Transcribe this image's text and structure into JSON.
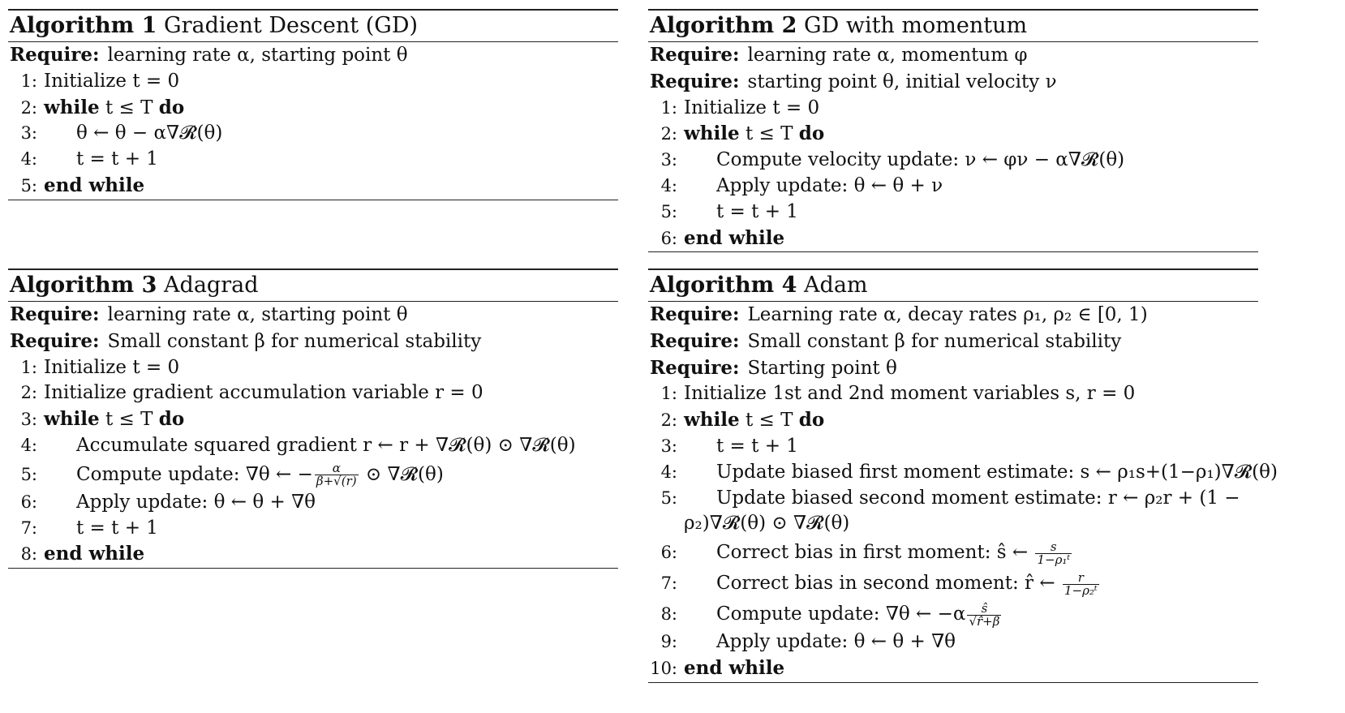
{
  "algorithms": [
    {
      "title_num": "Algorithm 1",
      "title_name": "Gradient Descent (GD)",
      "requires": [
        "learning rate α, starting point θ"
      ],
      "steps": [
        {
          "n": "1:",
          "indent": 0,
          "kw": "",
          "text": "Initialize t = 0",
          "kw2": ""
        },
        {
          "n": "2:",
          "indent": 0,
          "kw": "while",
          "text": " t ≤ T ",
          "kw2": "do"
        },
        {
          "n": "3:",
          "indent": 1,
          "kw": "",
          "text": "θ ← θ − α∇𝓡(θ)",
          "kw2": ""
        },
        {
          "n": "4:",
          "indent": 1,
          "kw": "",
          "text": "t = t + 1",
          "kw2": ""
        },
        {
          "n": "5:",
          "indent": 0,
          "kw": "end while",
          "text": "",
          "kw2": ""
        }
      ]
    },
    {
      "title_num": "Algorithm 2",
      "title_name": "GD with momentum",
      "requires": [
        "learning rate α, momentum φ",
        "starting point θ, initial velocity ν"
      ],
      "steps": [
        {
          "n": "1:",
          "indent": 0,
          "kw": "",
          "text": "Initialize t = 0",
          "kw2": ""
        },
        {
          "n": "2:",
          "indent": 0,
          "kw": "while",
          "text": " t ≤ T ",
          "kw2": "do"
        },
        {
          "n": "3:",
          "indent": 1,
          "kw": "",
          "text": "Compute velocity update: ν ← φν − α∇𝓡(θ)",
          "kw2": ""
        },
        {
          "n": "4:",
          "indent": 1,
          "kw": "",
          "text": "Apply update: θ ← θ + ν",
          "kw2": ""
        },
        {
          "n": "5:",
          "indent": 1,
          "kw": "",
          "text": "t = t + 1",
          "kw2": ""
        },
        {
          "n": "6:",
          "indent": 0,
          "kw": "end while",
          "text": "",
          "kw2": ""
        }
      ]
    },
    {
      "title_num": "Algorithm 3",
      "title_name": "Adagrad",
      "requires": [
        "learning rate α, starting point θ",
        "Small constant β for numerical stability"
      ],
      "steps": [
        {
          "n": "1:",
          "indent": 0,
          "kw": "",
          "text": "Initialize t = 0",
          "kw2": ""
        },
        {
          "n": "2:",
          "indent": 0,
          "kw": "",
          "text": "Initialize gradient accumulation variable r = 0",
          "kw2": ""
        },
        {
          "n": "3:",
          "indent": 0,
          "kw": "while",
          "text": " t ≤ T ",
          "kw2": "do"
        },
        {
          "n": "4:",
          "indent": 1,
          "kw": "",
          "text": "Accumulate squared gradient r ← r + ∇𝓡(θ) ⊙ ∇𝓡(θ)",
          "kw2": ""
        },
        {
          "n": "5:",
          "indent": 1,
          "kw": "",
          "text": "Compute update: ∇θ ← −",
          "frac_n": "α",
          "frac_d": "β+√(r)",
          "after": " ⊙ ∇𝓡(θ)",
          "kw2": ""
        },
        {
          "n": "6:",
          "indent": 1,
          "kw": "",
          "text": "Apply update: θ ← θ + ∇θ",
          "kw2": ""
        },
        {
          "n": "7:",
          "indent": 1,
          "kw": "",
          "text": "t = t + 1",
          "kw2": ""
        },
        {
          "n": "8:",
          "indent": 0,
          "kw": "end while",
          "text": "",
          "kw2": ""
        }
      ]
    },
    {
      "title_num": "Algorithm 4",
      "title_name": "Adam",
      "requires": [
        "Learning rate α, decay rates ρ₁, ρ₂ ∈ [0, 1)",
        "Small constant β for numerical stability",
        "Starting point θ"
      ],
      "steps": [
        {
          "n": "1:",
          "indent": 0,
          "kw": "",
          "text": "Initialize 1st and 2nd moment variables s, r = 0",
          "kw2": ""
        },
        {
          "n": "2:",
          "indent": 0,
          "kw": "while",
          "text": " t ≤ T ",
          "kw2": "do"
        },
        {
          "n": "3:",
          "indent": 1,
          "kw": "",
          "text": "t = t + 1",
          "kw2": ""
        },
        {
          "n": "4:",
          "indent": 1,
          "kw": "",
          "text": "Update biased first moment estimate: s ← ρ₁s+(1−ρ₁)∇𝓡(θ)",
          "kw2": ""
        },
        {
          "n": "5:",
          "indent": 1,
          "kw": "",
          "text": "Update biased second moment estimate:  r ← ρ₂r + (1 −",
          "kw2": "",
          "cont": "ρ₂)∇𝓡(θ) ⊙ ∇𝓡(θ)"
        },
        {
          "n": "6:",
          "indent": 1,
          "kw": "",
          "text": "Correct bias in first moment: ŝ ← ",
          "frac_n": "s",
          "frac_d": "1−ρ₁ᵗ",
          "after": "",
          "kw2": ""
        },
        {
          "n": "7:",
          "indent": 1,
          "kw": "",
          "text": "Correct bias in second moment: r̂ ← ",
          "frac_n": "r",
          "frac_d": "1−ρ₂ᵗ",
          "after": "",
          "kw2": ""
        },
        {
          "n": "8:",
          "indent": 1,
          "kw": "",
          "text": "Compute update: ∇θ ← −α",
          "frac_n": "ŝ",
          "frac_d": "√r̂+β",
          "after": "",
          "kw2": ""
        },
        {
          "n": "9:",
          "indent": 1,
          "kw": "",
          "text": "Apply update: θ ← θ + ∇θ",
          "kw2": ""
        },
        {
          "n": "10:",
          "indent": 0,
          "kw": "end while",
          "text": "",
          "kw2": ""
        }
      ]
    }
  ],
  "labels": {
    "require": "Require:"
  }
}
